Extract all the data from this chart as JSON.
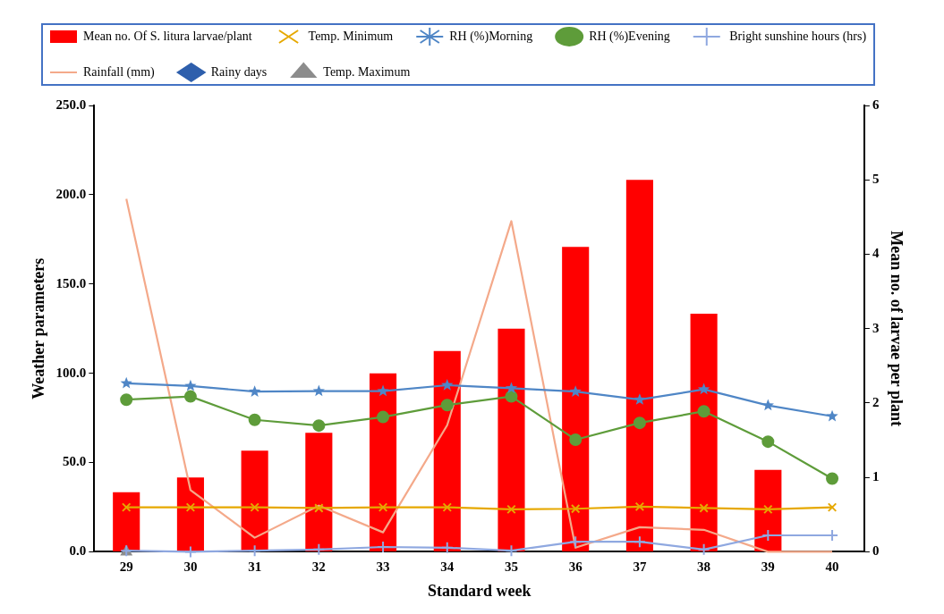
{
  "chart_data": {
    "type": "line",
    "xlabel": "Standard week",
    "ylabel": "Weather parameters",
    "y2label": "Mean no. of larvae per plant",
    "categories": [
      "29",
      "30",
      "31",
      "32",
      "33",
      "34",
      "35",
      "36",
      "37",
      "38",
      "39",
      "40"
    ],
    "series": [
      {
        "name": "Mean no. Of S. litura larvae/plant",
        "type": "bar",
        "axis": "y2",
        "color": "#ff0000",
        "values": [
          0.8,
          1.0,
          1.36,
          1.6,
          2.4,
          2.7,
          3.0,
          4.1,
          5.0,
          3.2,
          1.1,
          null
        ]
      },
      {
        "name": "Temp. Minimum",
        "color": "#e6a800",
        "marker": "cross",
        "values": [
          24.9,
          24.9,
          24.9,
          24.5,
          24.9,
          24.9,
          23.8,
          24.1,
          25.3,
          24.5,
          23.8,
          24.9
        ]
      },
      {
        "name": "RH (%)Morning",
        "color": "#4f86c6",
        "marker": "star",
        "values": [
          94.4,
          92.9,
          89.7,
          90.0,
          90.0,
          93.3,
          91.6,
          89.7,
          85.2,
          91.0,
          82.0,
          75.9
        ]
      },
      {
        "name": "RH (%)Evening",
        "color": "#5e9c3a",
        "marker": "circle",
        "values": [
          85.2,
          87.0,
          73.9,
          70.7,
          75.5,
          82.2,
          87.0,
          62.8,
          72.2,
          78.7,
          61.7,
          41.0
        ]
      },
      {
        "name": " Bright sunshine hours (hrs)",
        "color": "#8fa8e0",
        "marker": "plus",
        "values": [
          0.6,
          0,
          0.6,
          1.3,
          2.7,
          2.3,
          0.6,
          5.6,
          5.6,
          1.3,
          9.2,
          9.2
        ]
      },
      {
        "name": "Rainfall (mm)",
        "color": "#f4a98a",
        "marker": "none",
        "values": [
          197.7,
          34.5,
          7.9,
          25.9,
          10.9,
          70.9,
          185.2,
          2.3,
          13.8,
          12.3,
          0,
          0
        ]
      },
      {
        "name": "Rainy days",
        "color": "#2e5fac",
        "marker": "diamond",
        "values": [
          null,
          null,
          null,
          null,
          null,
          null,
          null,
          null,
          null,
          null,
          null,
          null
        ]
      },
      {
        "name": "Temp. Maximum",
        "color": "#8c8c8c",
        "marker": "triangle",
        "values": [
          0,
          null,
          null,
          null,
          null,
          null,
          null,
          null,
          null,
          null,
          null,
          null
        ]
      }
    ],
    "ylim": [
      0,
      250
    ],
    "yticks": [
      {
        "value": 0,
        "label": "0.0"
      },
      {
        "value": 50,
        "label": "50.0"
      },
      {
        "value": 100,
        "label": "100.0"
      },
      {
        "value": 150,
        "label": "150.0"
      },
      {
        "value": 200,
        "label": "200.0"
      },
      {
        "value": 250,
        "label": "250.0"
      }
    ],
    "y2lim": [
      0,
      6
    ],
    "y2ticks": [
      0,
      1,
      2,
      3,
      4,
      5,
      6
    ],
    "grid": false,
    "legend": "top"
  }
}
